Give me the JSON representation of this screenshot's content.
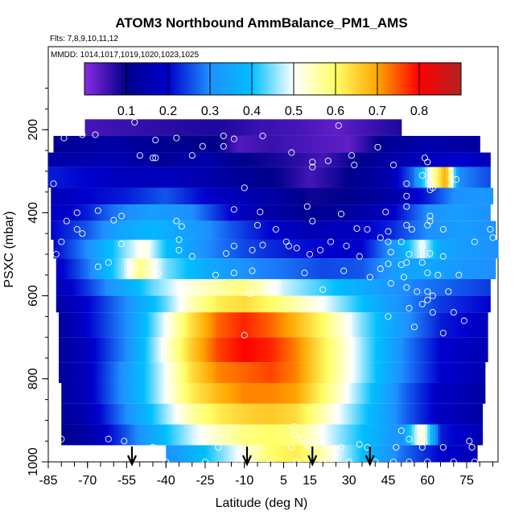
{
  "chart_data": {
    "type": "heatmap",
    "title": "ATOM3 Northbound AmmBalance_PM1_AMS",
    "flights_note": "Flts: 7,8,9,10,11,12",
    "dates_note": "MMDD: 1014,1017,1019,1020,1023,1025",
    "xlabel": "Latitude (deg N)",
    "ylabel": "PSXC (mbar)",
    "xlim": [
      -85,
      87
    ],
    "ylim": [
      1000,
      0
    ],
    "x_ticks": [
      "-85",
      "-70",
      "-55",
      "-40",
      "-25",
      "-10",
      "5",
      "15",
      "30",
      "45",
      "60",
      "75"
    ],
    "x_tick_values": [
      -85,
      -70,
      -55,
      -40,
      -25,
      -10,
      5,
      15,
      30,
      45,
      60,
      75
    ],
    "y_ticks": [
      "200",
      "400",
      "600",
      "800",
      "1000"
    ],
    "y_tick_values": [
      200,
      400,
      600,
      800,
      1000
    ],
    "colorbar": {
      "range": [
        0.0,
        0.9
      ],
      "ticks": [
        "0.1",
        "0.2",
        "0.3",
        "0.4",
        "0.5",
        "0.6",
        "0.7",
        "0.8"
      ],
      "tick_values": [
        0.1,
        0.2,
        0.3,
        0.4,
        0.5,
        0.6,
        0.7,
        0.8
      ],
      "colors": [
        "#8a2be2",
        "#00008b",
        "#0000cd",
        "#1e90ff",
        "#00bfff",
        "#ffffff",
        "#ffff66",
        "#ffa500",
        "#ff0000",
        "#b22222"
      ]
    },
    "profile_latitudes": [
      -53,
      -9,
      16,
      38
    ],
    "layers": [
      {
        "p_top": 175,
        "p_bottom": 215,
        "lat_min": -71,
        "lat_max": 50,
        "lat": [
          -71,
          -40,
          -20,
          -5,
          10,
          25,
          40,
          50
        ],
        "values": [
          0.05,
          0.07,
          0.08,
          0.06,
          0.05,
          0.03,
          0.06,
          0.08
        ]
      },
      {
        "p_top": 215,
        "p_bottom": 255,
        "lat_min": -83,
        "lat_max": 80,
        "lat": [
          -83,
          -60,
          -40,
          -20,
          -12,
          0,
          20,
          30,
          45,
          60,
          80
        ],
        "values": [
          0.12,
          0.14,
          0.11,
          0.1,
          0.04,
          0.06,
          0.04,
          0.03,
          0.12,
          0.15,
          0.13
        ]
      },
      {
        "p_top": 255,
        "p_bottom": 290,
        "lat_min": -85,
        "lat_max": 84,
        "lat": [
          -85,
          -60,
          -40,
          -25,
          -10,
          5,
          20,
          30,
          45,
          60,
          75,
          84
        ],
        "values": [
          0.14,
          0.16,
          0.12,
          0.15,
          0.1,
          0.08,
          0.05,
          0.09,
          0.14,
          0.18,
          0.2,
          0.16
        ]
      },
      {
        "p_top": 290,
        "p_bottom": 340,
        "lat_min": -85,
        "lat_max": 84,
        "lat": [
          -85,
          -70,
          -55,
          -40,
          -25,
          -10,
          5,
          15,
          30,
          45,
          55,
          62,
          67,
          72,
          84
        ],
        "values": [
          0.22,
          0.2,
          0.17,
          0.18,
          0.15,
          0.12,
          0.09,
          0.05,
          0.1,
          0.15,
          0.28,
          0.55,
          0.7,
          0.3,
          0.25
        ]
      },
      {
        "p_top": 340,
        "p_bottom": 380,
        "lat_min": -84,
        "lat_max": 85,
        "lat": [
          -84,
          -70,
          -55,
          -40,
          -25,
          -10,
          5,
          15,
          30,
          45,
          60,
          70,
          85
        ],
        "values": [
          0.16,
          0.2,
          0.22,
          0.26,
          0.2,
          0.16,
          0.13,
          0.09,
          0.1,
          0.14,
          0.22,
          0.3,
          0.32
        ]
      },
      {
        "p_top": 380,
        "p_bottom": 420,
        "lat_min": -84,
        "lat_max": 84,
        "lat": [
          -84,
          -70,
          -60,
          -45,
          -30,
          -15,
          0,
          15,
          30,
          45,
          60,
          70,
          84
        ],
        "values": [
          0.18,
          0.22,
          0.28,
          0.33,
          0.3,
          0.2,
          0.14,
          0.11,
          0.13,
          0.18,
          0.3,
          0.33,
          0.3
        ]
      },
      {
        "p_top": 420,
        "p_bottom": 465,
        "lat_min": -84,
        "lat_max": 86,
        "lat": [
          -84,
          -70,
          -58,
          -45,
          -30,
          -15,
          0,
          15,
          30,
          45,
          60,
          72,
          86
        ],
        "values": [
          0.2,
          0.26,
          0.34,
          0.38,
          0.33,
          0.26,
          0.2,
          0.16,
          0.18,
          0.22,
          0.3,
          0.33,
          0.3
        ]
      },
      {
        "p_top": 465,
        "p_bottom": 510,
        "lat_min": -83,
        "lat_max": 87,
        "lat": [
          -83,
          -70,
          -55,
          -48,
          -40,
          -25,
          -10,
          5,
          20,
          35,
          50,
          58,
          65,
          87
        ],
        "values": [
          0.2,
          0.3,
          0.46,
          0.52,
          0.4,
          0.3,
          0.25,
          0.22,
          0.2,
          0.2,
          0.35,
          0.5,
          0.35,
          0.3
        ]
      },
      {
        "p_top": 510,
        "p_bottom": 560,
        "lat_min": -82,
        "lat_max": 86,
        "lat": [
          -82,
          -70,
          -57,
          -50,
          -40,
          -25,
          -10,
          5,
          20,
          35,
          50,
          60,
          70,
          86
        ],
        "values": [
          0.18,
          0.28,
          0.45,
          0.58,
          0.45,
          0.36,
          0.3,
          0.28,
          0.25,
          0.26,
          0.34,
          0.35,
          0.32,
          0.3
        ]
      },
      {
        "p_top": 560,
        "p_bottom": 600,
        "lat_min": -82,
        "lat_max": 84,
        "lat": [
          -82,
          -70,
          -55,
          -45,
          -35,
          -25,
          -12,
          -5,
          5,
          20,
          35,
          50,
          60,
          72,
          84
        ],
        "values": [
          0.16,
          0.24,
          0.36,
          0.44,
          0.5,
          0.54,
          0.58,
          0.55,
          0.48,
          0.42,
          0.36,
          0.3,
          0.28,
          0.26,
          0.24
        ]
      },
      {
        "p_top": 600,
        "p_bottom": 640,
        "lat_min": -82,
        "lat_max": 84,
        "lat": [
          -82,
          -70,
          -55,
          -40,
          -30,
          -20,
          -10,
          0,
          10,
          20,
          35,
          50,
          65,
          84
        ],
        "values": [
          0.14,
          0.2,
          0.3,
          0.44,
          0.55,
          0.62,
          0.64,
          0.6,
          0.55,
          0.5,
          0.4,
          0.3,
          0.24,
          0.2
        ]
      },
      {
        "p_top": 640,
        "p_bottom": 700,
        "lat_min": -81,
        "lat_max": 83,
        "lat": [
          -81,
          -70,
          -55,
          -40,
          -30,
          -20,
          -10,
          0,
          10,
          20,
          35,
          50,
          65,
          83
        ],
        "values": [
          0.12,
          0.2,
          0.3,
          0.5,
          0.64,
          0.74,
          0.78,
          0.74,
          0.68,
          0.6,
          0.45,
          0.32,
          0.22,
          0.18
        ]
      },
      {
        "p_top": 700,
        "p_bottom": 760,
        "lat_min": -81,
        "lat_max": 83,
        "lat": [
          -81,
          -70,
          -55,
          -40,
          -30,
          -20,
          -10,
          0,
          10,
          20,
          35,
          50,
          65,
          83
        ],
        "values": [
          0.12,
          0.18,
          0.3,
          0.52,
          0.66,
          0.76,
          0.8,
          0.78,
          0.72,
          0.62,
          0.46,
          0.3,
          0.2,
          0.16
        ]
      },
      {
        "p_top": 760,
        "p_bottom": 810,
        "lat_min": -81,
        "lat_max": 82,
        "lat": [
          -81,
          -70,
          -55,
          -40,
          -30,
          -20,
          -10,
          0,
          10,
          20,
          35,
          50,
          65,
          82
        ],
        "values": [
          0.12,
          0.18,
          0.32,
          0.5,
          0.64,
          0.72,
          0.74,
          0.76,
          0.72,
          0.62,
          0.46,
          0.3,
          0.2,
          0.16
        ]
      },
      {
        "p_top": 810,
        "p_bottom": 860,
        "lat_min": -80,
        "lat_max": 82,
        "lat": [
          -80,
          -70,
          -55,
          -40,
          -30,
          -20,
          -10,
          0,
          10,
          20,
          35,
          50,
          65,
          82
        ],
        "values": [
          0.12,
          0.18,
          0.32,
          0.5,
          0.62,
          0.68,
          0.72,
          0.72,
          0.7,
          0.6,
          0.44,
          0.28,
          0.18,
          0.14
        ]
      },
      {
        "p_top": 860,
        "p_bottom": 910,
        "lat_min": -80,
        "lat_max": 81,
        "lat": [
          -80,
          -70,
          -55,
          -40,
          -30,
          -20,
          -10,
          0,
          10,
          20,
          35,
          50,
          65,
          81
        ],
        "values": [
          0.12,
          0.16,
          0.3,
          0.46,
          0.56,
          0.62,
          0.65,
          0.66,
          0.64,
          0.55,
          0.42,
          0.28,
          0.18,
          0.14
        ]
      },
      {
        "p_top": 910,
        "p_bottom": 960,
        "lat_min": -80,
        "lat_max": 81,
        "lat": [
          -80,
          -70,
          -55,
          -40,
          -30,
          -20,
          -10,
          0,
          10,
          20,
          35,
          50,
          58,
          65,
          81
        ],
        "values": [
          0.1,
          0.14,
          0.26,
          0.4,
          0.48,
          0.54,
          0.58,
          0.6,
          0.58,
          0.5,
          0.4,
          0.3,
          0.55,
          0.22,
          0.16
        ]
      },
      {
        "p_top": 960,
        "p_bottom": 1000,
        "lat_min": -40,
        "lat_max": 79,
        "lat": [
          -40,
          -25,
          -12,
          0,
          10,
          20,
          35,
          50,
          65,
          79
        ],
        "values": [
          0.3,
          0.4,
          0.5,
          0.6,
          0.62,
          0.55,
          0.4,
          0.28,
          0.2,
          0.16
        ]
      }
    ],
    "sample_points": [
      [
        -52,
        182
      ],
      [
        -72,
        212
      ],
      [
        -67,
        212
      ],
      [
        -44,
        225
      ],
      [
        -18,
        215
      ],
      [
        -14,
        222
      ],
      [
        -3,
        215
      ],
      [
        26,
        190
      ],
      [
        -26,
        240
      ],
      [
        -18,
        240
      ],
      [
        -45,
        268
      ],
      [
        -44,
        268
      ],
      [
        -50,
        262
      ],
      [
        -79,
        220
      ],
      [
        -36,
        220
      ],
      [
        -30,
        262
      ],
      [
        8,
        255
      ],
      [
        16,
        290
      ],
      [
        16,
        278
      ],
      [
        22,
        275
      ],
      [
        31,
        262
      ],
      [
        41,
        242
      ],
      [
        32,
        285
      ],
      [
        47,
        285
      ],
      [
        59,
        268
      ],
      [
        60,
        278
      ],
      [
        -83,
        330
      ],
      [
        -10,
        340
      ],
      [
        52,
        330
      ],
      [
        58,
        310
      ],
      [
        61,
        325
      ],
      [
        62,
        340
      ],
      [
        71,
        320
      ],
      [
        61,
        345
      ],
      [
        52,
        360
      ],
      [
        -74,
        400
      ],
      [
        -78,
        420
      ],
      [
        -66,
        395
      ],
      [
        -60,
        418
      ],
      [
        -57,
        408
      ],
      [
        -36,
        420
      ],
      [
        -14,
        392
      ],
      [
        -4,
        398
      ],
      [
        14,
        385
      ],
      [
        27,
        403
      ],
      [
        44,
        398
      ],
      [
        52,
        385
      ],
      [
        61,
        408
      ],
      [
        61,
        420
      ],
      [
        54,
        440
      ],
      [
        -74,
        440
      ],
      [
        -72,
        450
      ],
      [
        -34,
        433
      ],
      [
        -5,
        430
      ],
      [
        2,
        440
      ],
      [
        16,
        420
      ],
      [
        33,
        438
      ],
      [
        37,
        440
      ],
      [
        45,
        445
      ],
      [
        52,
        430
      ],
      [
        60,
        430
      ],
      [
        66,
        440
      ],
      [
        84,
        440
      ],
      [
        -80,
        470
      ],
      [
        -57,
        475
      ],
      [
        -35,
        465
      ],
      [
        -14,
        480
      ],
      [
        -3,
        478
      ],
      [
        6,
        470
      ],
      [
        10,
        485
      ],
      [
        23,
        470
      ],
      [
        29,
        480
      ],
      [
        42,
        460
      ],
      [
        45,
        470
      ],
      [
        50,
        470
      ],
      [
        58,
        480
      ],
      [
        78,
        470
      ],
      [
        85,
        460
      ],
      [
        -82,
        500
      ],
      [
        -48,
        500
      ],
      [
        -35,
        490
      ],
      [
        -30,
        505
      ],
      [
        -17,
        498
      ],
      [
        -7,
        490
      ],
      [
        7,
        480
      ],
      [
        15,
        500
      ],
      [
        19,
        490
      ],
      [
        34,
        505
      ],
      [
        46,
        495
      ],
      [
        53,
        500
      ],
      [
        61,
        498
      ],
      [
        66,
        505
      ],
      [
        58,
        520
      ],
      [
        52,
        520
      ],
      [
        45,
        523
      ],
      [
        -43,
        545
      ],
      [
        -21,
        550
      ],
      [
        -14,
        545
      ],
      [
        -7,
        540
      ],
      [
        13,
        545
      ],
      [
        28,
        540
      ],
      [
        42,
        535
      ],
      [
        50,
        525
      ],
      [
        -52,
        530
      ],
      [
        -62,
        520
      ],
      [
        -66,
        530
      ],
      [
        60,
        545
      ],
      [
        64,
        550
      ],
      [
        72,
        550
      ],
      [
        51,
        555
      ],
      [
        38,
        555
      ],
      [
        46,
        570
      ],
      [
        -1,
        585
      ],
      [
        20,
        585
      ],
      [
        -8,
        595
      ],
      [
        52,
        580
      ],
      [
        60,
        590
      ],
      [
        62,
        600
      ],
      [
        68,
        590
      ],
      [
        58,
        620
      ],
      [
        53,
        630
      ],
      [
        62,
        640
      ],
      [
        70,
        640
      ],
      [
        45,
        650
      ],
      [
        74,
        660
      ],
      [
        66,
        690
      ],
      [
        56,
        590
      ],
      [
        60,
        610
      ],
      [
        -10,
        695
      ],
      [
        55,
        675
      ],
      [
        9,
        915
      ],
      [
        9,
        935
      ],
      [
        12,
        945
      ],
      [
        14,
        960
      ],
      [
        22,
        960
      ],
      [
        34,
        958
      ],
      [
        50,
        925
      ],
      [
        53,
        945
      ],
      [
        58,
        945
      ],
      [
        58,
        928
      ],
      [
        76,
        950
      ],
      [
        77,
        965
      ],
      [
        -56,
        950
      ],
      [
        -62,
        945
      ],
      [
        -80,
        945
      ],
      [
        -45,
        965
      ],
      [
        -40,
        1000
      ],
      [
        -25,
        1000
      ],
      [
        -12,
        1000
      ],
      [
        0,
        1000
      ],
      [
        10,
        1000
      ],
      [
        20,
        1000
      ],
      [
        30,
        1000
      ],
      [
        40,
        1000
      ],
      [
        47,
        1000
      ],
      [
        53,
        1000
      ],
      [
        60,
        1000
      ],
      [
        70,
        1000
      ],
      [
        78,
        1000
      ],
      [
        8,
        965
      ],
      [
        16,
        965
      ],
      [
        27,
        965
      ],
      [
        37,
        965
      ],
      [
        48,
        965
      ],
      [
        58,
        965
      ],
      [
        66,
        965
      ],
      [
        -5,
        965
      ],
      [
        -20,
        965
      ]
    ]
  }
}
